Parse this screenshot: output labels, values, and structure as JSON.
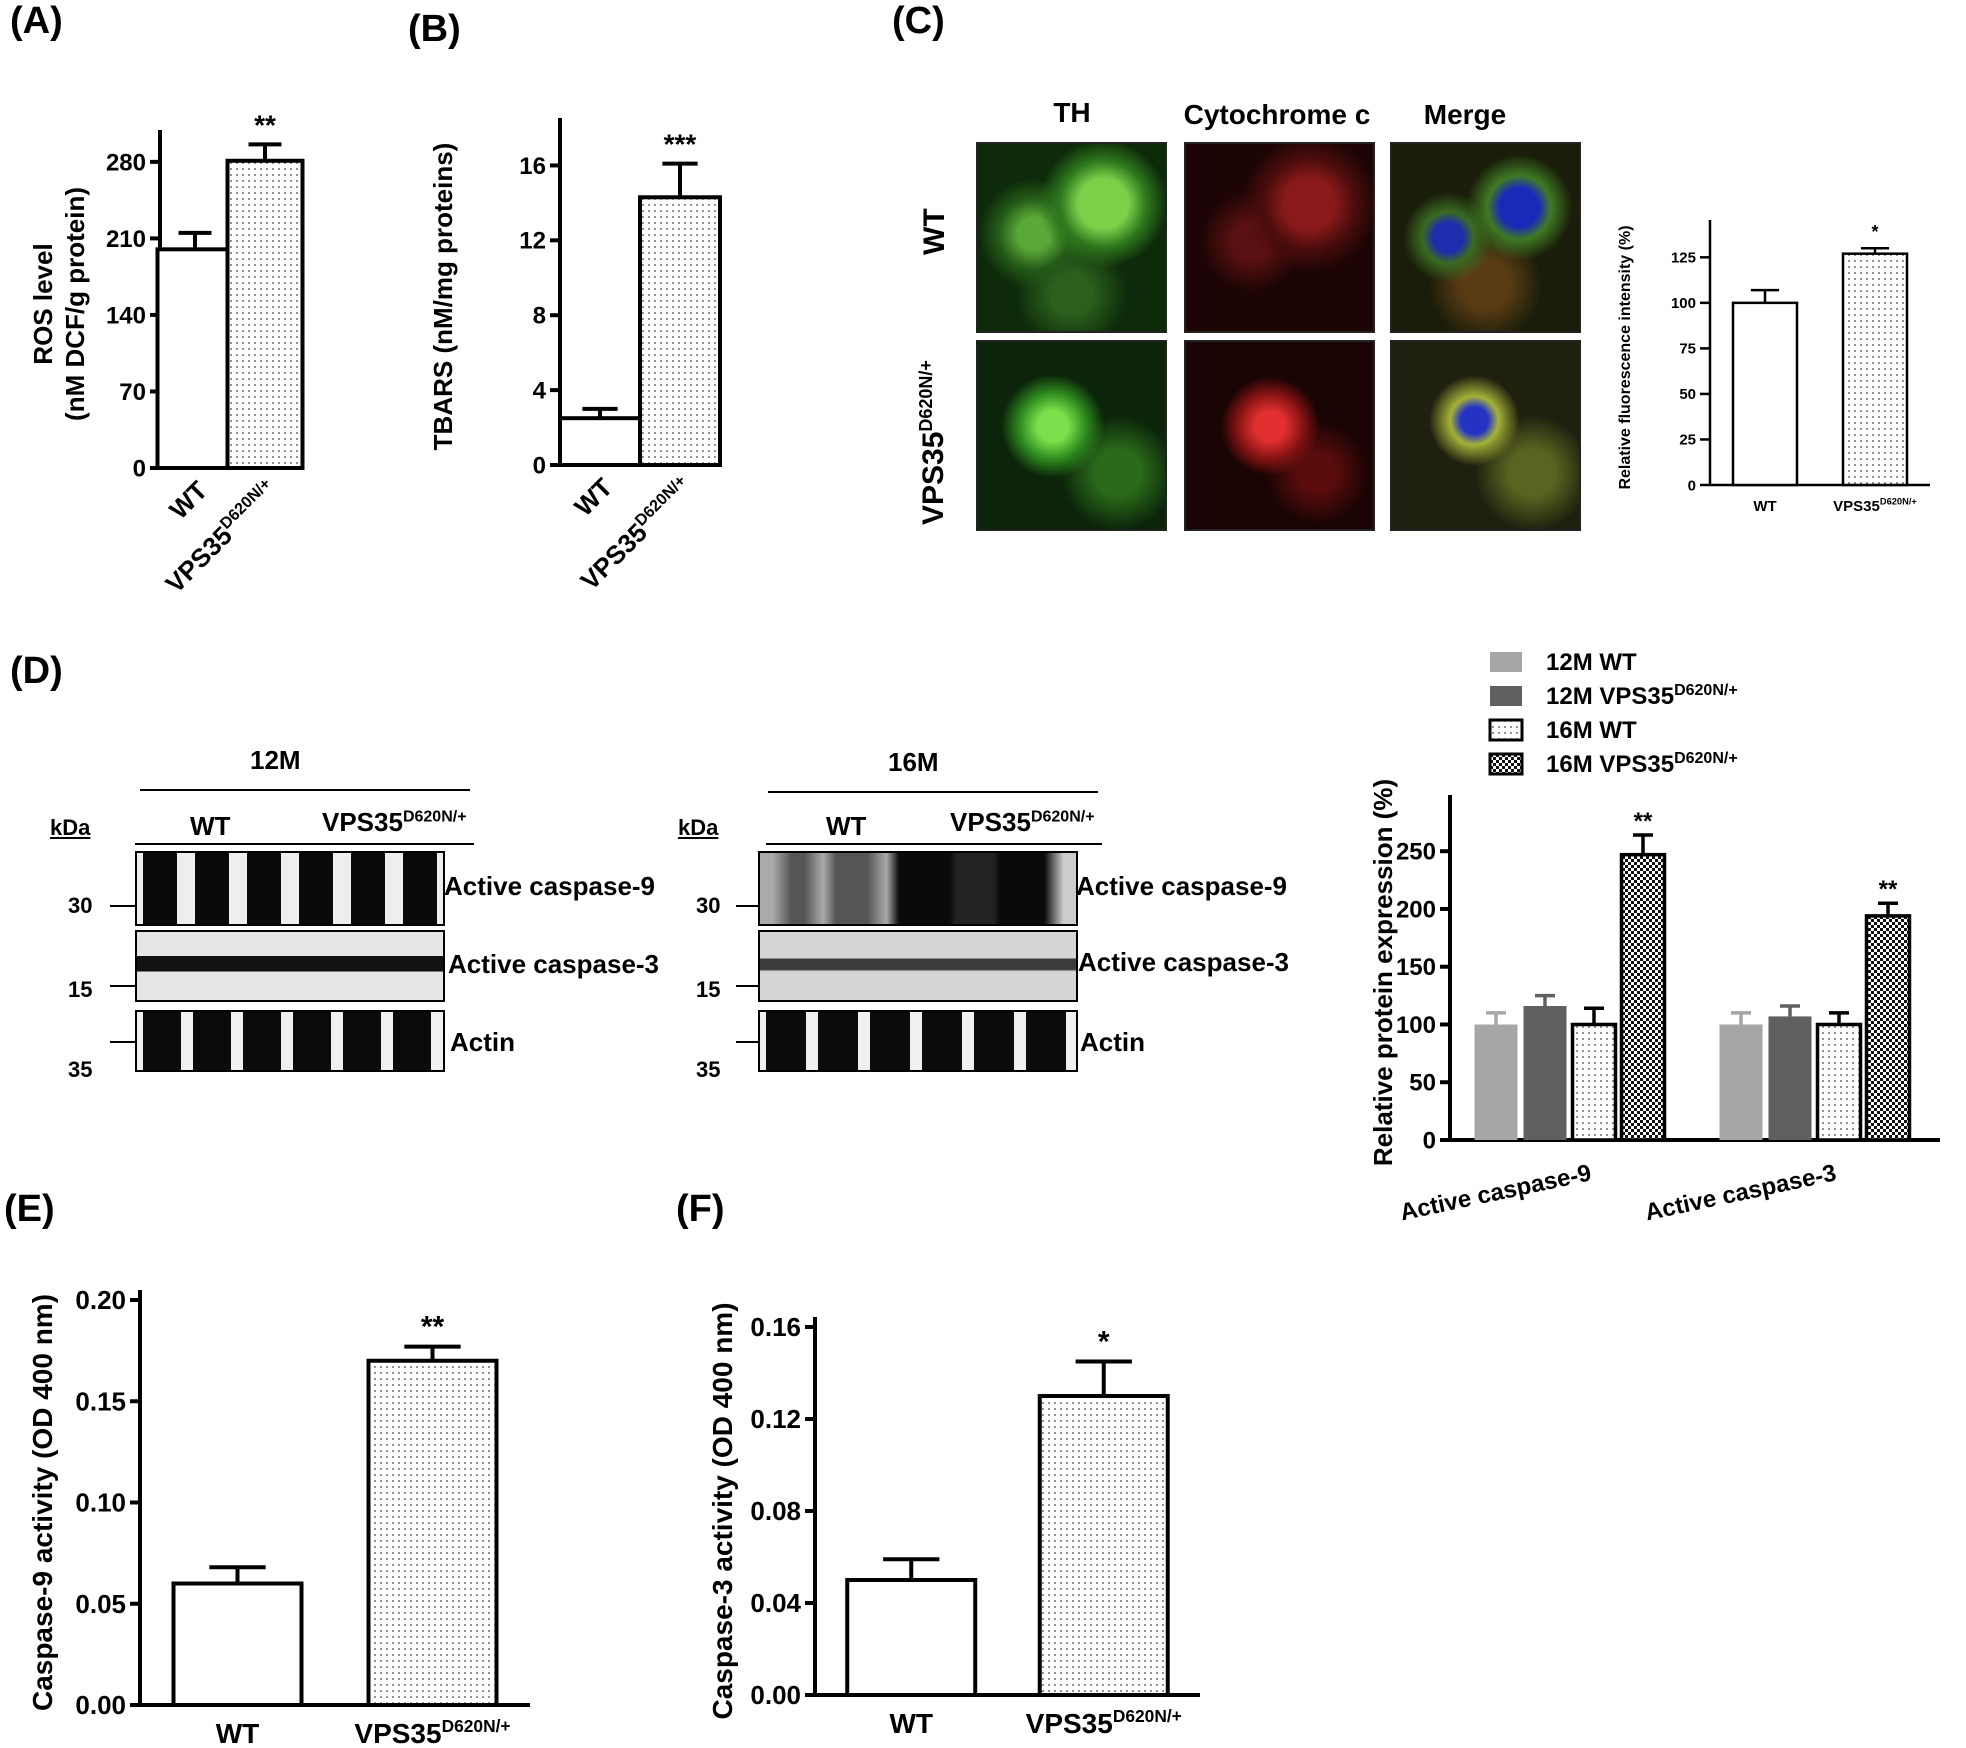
{
  "panel_labels": {
    "a": "(A)",
    "b": "(B)",
    "c": "(C)",
    "d": "(D)",
    "e": "(E)",
    "f": "(F)"
  },
  "chart_data": [
    {
      "id": "A",
      "type": "bar",
      "categories": [
        "WT",
        "VPS35"
      ],
      "category_superscripts": [
        "",
        "D620N/+"
      ],
      "values": [
        200,
        281
      ],
      "errors": [
        15,
        15
      ],
      "significance": [
        "",
        "**"
      ],
      "ylabel_lines": [
        "ROS level",
        "(nM DCF/g protein)"
      ],
      "yticks": [
        "0",
        "70",
        "140",
        "210",
        "280"
      ],
      "ylim": [
        0,
        300
      ],
      "patterns": [
        "open",
        "dots"
      ]
    },
    {
      "id": "B",
      "type": "bar",
      "categories": [
        "WT",
        "VPS35"
      ],
      "category_superscripts": [
        "",
        "D620N/+"
      ],
      "values": [
        2.5,
        14.3
      ],
      "errors": [
        0.5,
        1.8
      ],
      "significance": [
        "",
        "***"
      ],
      "ylabel_lines": [
        "TBARS (nM/mg proteins)"
      ],
      "yticks": [
        "0",
        "4",
        "8",
        "12",
        "16"
      ],
      "ylim": [
        0,
        18
      ],
      "patterns": [
        "open",
        "dots"
      ]
    },
    {
      "id": "C",
      "type": "bar",
      "categories": [
        "WT",
        "VPS35"
      ],
      "category_superscripts": [
        "",
        "D620N/+"
      ],
      "values": [
        100,
        127
      ],
      "errors": [
        7,
        3
      ],
      "significance": [
        "",
        "*"
      ],
      "ylabel_lines": [
        "Relative fluorescence intensity (%)"
      ],
      "yticks": [
        "0",
        "25",
        "50",
        "75",
        "100",
        "125"
      ],
      "ylim": [
        0,
        140
      ],
      "patterns": [
        "open",
        "dots"
      ]
    },
    {
      "id": "D",
      "type": "bar",
      "categories": [
        "Active caspase-9",
        "Active caspase-3"
      ],
      "series": [
        {
          "name": "12M WT",
          "values": [
            100,
            100
          ],
          "errors": [
            10,
            10
          ],
          "pattern": "light"
        },
        {
          "name": "12M VPS35",
          "values": [
            116,
            107
          ],
          "errors": [
            9,
            9
          ],
          "pattern": "dark"
        },
        {
          "name": "16M WT",
          "values": [
            100,
            100
          ],
          "errors": [
            14,
            10
          ],
          "pattern": "dots"
        },
        {
          "name": "16M VPS35",
          "values": [
            247,
            194
          ],
          "errors": [
            17,
            11
          ],
          "pattern": "checker"
        }
      ],
      "series_superscripts": [
        "",
        "D620N/+",
        "",
        "D620N/+"
      ],
      "significance": [
        "**",
        "**"
      ],
      "ylabel_lines": [
        "Relative protein expression (%)"
      ],
      "yticks": [
        "0",
        "50",
        "100",
        "150",
        "200",
        "250"
      ],
      "ylim": [
        0,
        290
      ],
      "legend_position": "top"
    },
    {
      "id": "E",
      "type": "bar",
      "categories": [
        "WT",
        "VPS35"
      ],
      "category_superscripts": [
        "",
        "D620N/+"
      ],
      "values": [
        0.06,
        0.17
      ],
      "errors": [
        0.008,
        0.007
      ],
      "significance": [
        "",
        "**"
      ],
      "ylabel_lines": [
        "Caspase-9 activity (OD 400 nm)"
      ],
      "yticks": [
        "0.00",
        "0.05",
        "0.10",
        "0.15",
        "0.20"
      ],
      "ylim": [
        0,
        0.2
      ],
      "patterns": [
        "open",
        "dots"
      ]
    },
    {
      "id": "F",
      "type": "bar",
      "categories": [
        "WT",
        "VPS35"
      ],
      "category_superscripts": [
        "",
        "D620N/+"
      ],
      "values": [
        0.05,
        0.13
      ],
      "errors": [
        0.009,
        0.015
      ],
      "significance": [
        "",
        "*"
      ],
      "ylabel_lines": [
        "Caspase-3 activity (OD 400 nm)"
      ],
      "yticks": [
        "0.00",
        "0.04",
        "0.08",
        "0.12",
        "0.16"
      ],
      "ylim": [
        0,
        0.16
      ],
      "patterns": [
        "open",
        "dots"
      ]
    }
  ],
  "microscopy": {
    "col_labels": [
      "TH",
      "Cytochrome c",
      "Merge"
    ],
    "row_labels": [
      "WT",
      "VPS35"
    ],
    "row_superscripts": [
      "",
      "D620N/+"
    ]
  },
  "blots": {
    "kda_label": "kDa",
    "markers": [
      "30",
      "15",
      "35"
    ],
    "band_labels": [
      "Active caspase-9",
      "Active caspase-3",
      "Actin"
    ],
    "groups": [
      {
        "age": "12M",
        "wt": "WT",
        "mut": "VPS35",
        "mut_sup": "D620N/+"
      },
      {
        "age": "16M",
        "wt": "WT",
        "mut": "VPS35",
        "mut_sup": "D620N/+"
      }
    ]
  }
}
